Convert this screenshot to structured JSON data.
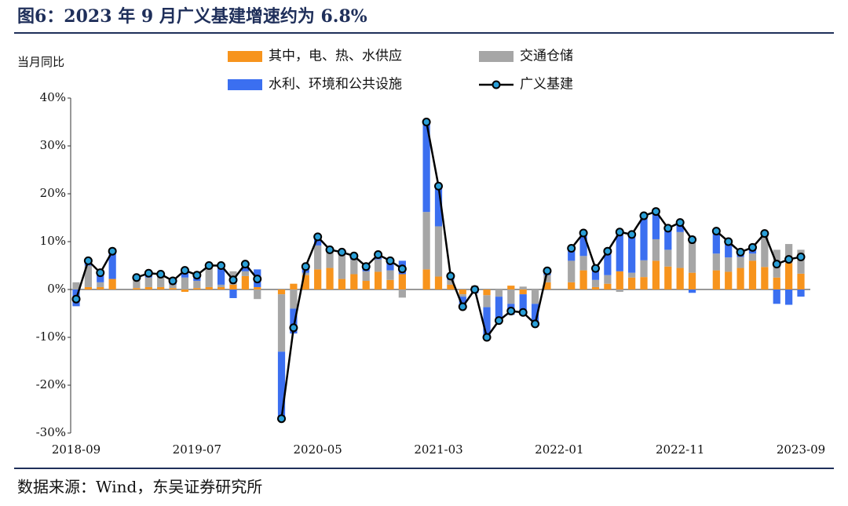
{
  "chart_data": {
    "type": "stacked-bar-line",
    "title": "图6：2023 年 9 月广义基建增速约为 6.8%",
    "y_label": "当月同比",
    "source": "数据来源：Wind，东吴证券研究所",
    "categories": [
      "2018-09",
      null,
      null,
      null,
      null,
      null,
      null,
      null,
      null,
      null,
      "2019-07",
      null,
      null,
      null,
      null,
      null,
      null,
      null,
      null,
      null,
      "2020-05",
      null,
      null,
      null,
      null,
      null,
      null,
      null,
      null,
      null,
      "2021-03",
      null,
      null,
      null,
      null,
      null,
      null,
      null,
      null,
      null,
      "2022-01",
      null,
      null,
      null,
      null,
      null,
      null,
      null,
      null,
      null,
      "2022-11",
      null,
      null,
      null,
      null,
      null,
      null,
      null,
      null,
      null,
      "2023-09"
    ],
    "series": [
      {
        "name": "其中，电、热、水供应",
        "color": "#f7941d",
        "kind": "bar",
        "values": [
          0,
          0.5,
          0.5,
          2.2,
          null,
          0.3,
          0.5,
          0.5,
          0.3,
          -0.5,
          0.3,
          0.5,
          0.5,
          1,
          2.8,
          0.5,
          null,
          -1,
          1.2,
          3,
          4.2,
          4.5,
          2.2,
          3.2,
          1.8,
          3.7,
          2,
          3.2,
          null,
          4.2,
          2.7,
          1,
          -1,
          0.3,
          -1.2,
          0,
          0.8,
          -1,
          0,
          1.5,
          null,
          1.5,
          4,
          0.5,
          1.2,
          3.8,
          2.5,
          2.6,
          6,
          4.8,
          4.5,
          3.5,
          null,
          4,
          3.7,
          4.5,
          6,
          4.7,
          2.5,
          5.5,
          3.3
        ]
      },
      {
        "name": "交通仓储",
        "color": "#a6a6a6",
        "kind": "bar",
        "values": [
          1.5,
          4.5,
          1,
          0,
          null,
          2,
          2,
          2.5,
          0.7,
          2.5,
          1.5,
          4,
          0.5,
          2.8,
          1,
          -2,
          null,
          -12,
          -4,
          0.5,
          5,
          3.5,
          5,
          3,
          2,
          2.6,
          2,
          -1.7,
          null,
          12,
          10.5,
          1,
          -0.5,
          0.5,
          -2.5,
          -1.5,
          -3,
          0.6,
          -3,
          1.5,
          null,
          4.5,
          3,
          1.5,
          1.8,
          -0.5,
          1,
          3.5,
          4.5,
          3.5,
          7.5,
          7.6,
          null,
          3.5,
          3,
          2.3,
          1.5,
          7,
          5.8,
          4,
          5
        ]
      },
      {
        "name": "水利、环境和公共设施",
        "color": "#3b6ff0",
        "kind": "bar",
        "values": [
          -3.5,
          1,
          2,
          5.8,
          null,
          0.2,
          0.9,
          0.2,
          0.8,
          2,
          1.2,
          0.5,
          4,
          -1.8,
          1.5,
          3.7,
          null,
          -14,
          -5.2,
          1.3,
          1.8,
          0.3,
          0.6,
          0.8,
          1,
          1,
          2,
          2.8,
          null,
          18.8,
          8.4,
          0.8,
          -2.1,
          -0.8,
          -6.3,
          -5,
          -2.3,
          -4.4,
          -4.2,
          0.9,
          null,
          2.6,
          4.8,
          2.4,
          5,
          8.7,
          8,
          9.3,
          5.8,
          4.5,
          2,
          -0.7,
          null,
          4.7,
          3.3,
          1,
          1.3,
          0,
          -3,
          -3.2,
          -1.5
        ]
      },
      {
        "name": "广义基建",
        "color": "#000000",
        "marker_color": "#2a9fd8",
        "kind": "line",
        "values": [
          -2,
          6,
          3.5,
          8,
          null,
          2.5,
          3.4,
          3.2,
          1.8,
          4,
          3,
          5,
          5,
          2,
          5.3,
          2.2,
          null,
          -27,
          -8,
          4.8,
          11,
          8.3,
          7.8,
          7,
          4.8,
          7.3,
          6,
          4.3,
          null,
          35,
          21.6,
          2.8,
          -3.6,
          0,
          -10,
          -6.5,
          -4.5,
          -4.8,
          -7.2,
          3.9,
          null,
          8.6,
          11.8,
          4.4,
          8,
          12,
          11.5,
          15.4,
          16.3,
          12.8,
          14,
          10.4,
          null,
          12.2,
          10,
          7.8,
          8.8,
          11.7,
          5.3,
          6.3,
          6.8
        ]
      }
    ],
    "ylim": [
      -30,
      40
    ],
    "yticks": [
      {
        "value": -30,
        "label": "-30%"
      },
      {
        "value": -20,
        "label": "-20%"
      },
      {
        "value": -10,
        "label": "-10%"
      },
      {
        "value": 0,
        "label": "0%"
      },
      {
        "value": 10,
        "label": "10%"
      },
      {
        "value": 20,
        "label": "20%"
      },
      {
        "value": 30,
        "label": "30%"
      },
      {
        "value": 40,
        "label": "40%"
      }
    ],
    "legend": "top"
  }
}
